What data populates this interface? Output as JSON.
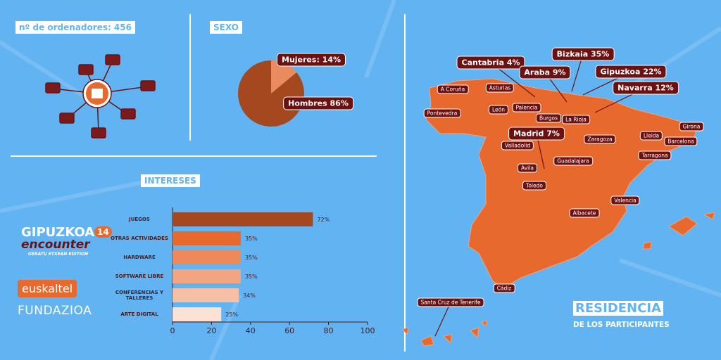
{
  "header": {
    "computers": "nº de ordenadores: 456"
  },
  "chart_data": [
    {
      "type": "pie",
      "title": "SEXO",
      "categories": [
        "Mujeres",
        "Hombres"
      ],
      "values": [
        14,
        86
      ],
      "value_labels": [
        "Mujeres: 14%",
        "Hombres 86%"
      ],
      "colors": [
        "#ea8a5f",
        "#a4491f"
      ]
    },
    {
      "type": "hbar",
      "title": "INTERESES",
      "categories": [
        "JUEGOS",
        "OTRAS ACTIVIDADES",
        "HARDWARE",
        "SOFTWARE LIBRE",
        "CONFERENCIAS Y TALLERES",
        "ARTE DIGITAL"
      ],
      "values": [
        72,
        35,
        35,
        35,
        34,
        25
      ],
      "value_labels": [
        "72%",
        "35%",
        "35%",
        "35%",
        "34%",
        "25%"
      ],
      "colors": [
        "#a4491f",
        "#e8692e",
        "#ee8a5a",
        "#f2a57f",
        "#f5c0a3",
        "#fbe2d5"
      ],
      "xlim": [
        0,
        100
      ],
      "xticks": [
        0,
        20,
        40,
        60,
        80,
        100
      ]
    }
  ],
  "logos": {
    "event": "GIPUZKOA",
    "event_sub": "encounter",
    "edition_number": "14",
    "edition": "GERATU ETXEAN EDITION",
    "sponsor1": "euskaltel",
    "sponsor2": "FUNDAZIOA"
  },
  "map": {
    "title": "RESIDENCIA",
    "subtitle": "DE LOS PARTICIPANTES",
    "regions": [
      "Cantabria 4%",
      "Bizkaia 35%",
      "Araba 9%",
      "Gipuzkoa 22%",
      "Navarra 12%",
      "Madrid 7%"
    ],
    "cities": [
      "A Coruña",
      "Asturias",
      "Pontevedra",
      "León",
      "Palencia",
      "Burgos",
      "La Rioja",
      "Valladolid",
      "Zaragoza",
      "Lleida",
      "Girona",
      "Barcelona",
      "Tarragona",
      "Guadalajara",
      "Ávila",
      "Toledo",
      "Valencia",
      "Albacete",
      "Cádiz",
      "Santa Cruz de Tenerife"
    ]
  }
}
